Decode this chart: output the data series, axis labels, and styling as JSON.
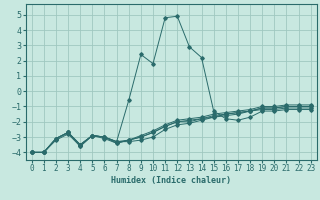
{
  "xlabel": "Humidex (Indice chaleur)",
  "xlim": [
    -0.5,
    23.5
  ],
  "ylim": [
    -4.5,
    5.7
  ],
  "yticks": [
    -4,
    -3,
    -2,
    -1,
    0,
    1,
    2,
    3,
    4,
    5
  ],
  "xticks": [
    0,
    1,
    2,
    3,
    4,
    5,
    6,
    7,
    8,
    9,
    10,
    11,
    12,
    13,
    14,
    15,
    16,
    17,
    18,
    19,
    20,
    21,
    22,
    23
  ],
  "bg_color": "#c8e8e0",
  "grid_color": "#a0c8c0",
  "line_color": "#2a6b6b",
  "x": [
    0,
    1,
    2,
    3,
    4,
    5,
    6,
    7,
    8,
    9,
    10,
    11,
    12,
    13,
    14,
    15,
    16,
    17,
    18,
    19,
    20,
    21,
    22,
    23
  ],
  "lines": [
    [
      -4.0,
      -4.0,
      -3.1,
      -2.7,
      -3.5,
      -2.9,
      -3.0,
      -3.3,
      -0.6,
      2.4,
      1.8,
      4.8,
      4.9,
      2.9,
      2.2,
      -1.3,
      -1.8,
      -1.9,
      -1.7,
      -1.3,
      -1.3,
      -1.2,
      -1.2,
      -1.2
    ],
    [
      -4.0,
      -4.0,
      -3.1,
      -2.7,
      -3.5,
      -2.9,
      -3.0,
      -3.3,
      -3.3,
      -3.2,
      -3.0,
      -2.5,
      -2.2,
      -2.1,
      -1.9,
      -1.7,
      -1.6,
      -1.5,
      -1.3,
      -1.2,
      -1.2,
      -1.1,
      -1.1,
      -1.1
    ],
    [
      -4.0,
      -4.0,
      -3.1,
      -2.7,
      -3.6,
      -2.9,
      -3.0,
      -3.4,
      -3.2,
      -3.0,
      -2.7,
      -2.3,
      -2.0,
      -1.9,
      -1.8,
      -1.6,
      -1.5,
      -1.4,
      -1.3,
      -1.1,
      -1.1,
      -1.0,
      -1.0,
      -1.0
    ],
    [
      -4.0,
      -4.0,
      -3.2,
      -2.8,
      -3.6,
      -2.9,
      -3.1,
      -3.4,
      -3.2,
      -3.0,
      -2.7,
      -2.3,
      -2.0,
      -2.0,
      -1.8,
      -1.7,
      -1.5,
      -1.4,
      -1.3,
      -1.1,
      -1.1,
      -1.0,
      -1.0,
      -1.0
    ],
    [
      -4.0,
      -4.0,
      -3.1,
      -2.7,
      -3.5,
      -2.9,
      -3.0,
      -3.3,
      -3.2,
      -2.9,
      -2.6,
      -2.2,
      -1.9,
      -1.8,
      -1.7,
      -1.5,
      -1.4,
      -1.3,
      -1.2,
      -1.0,
      -1.0,
      -0.9,
      -0.9,
      -0.9
    ]
  ]
}
